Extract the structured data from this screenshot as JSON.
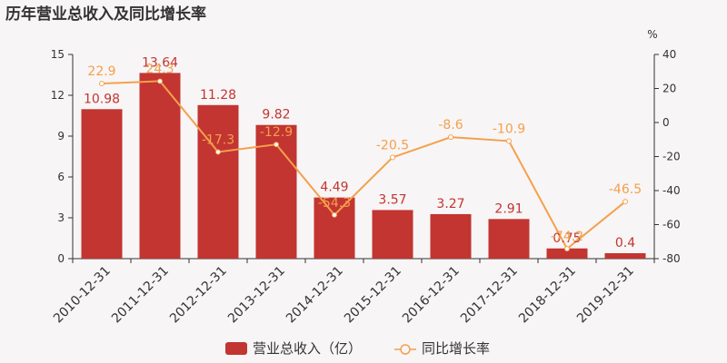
{
  "chart_data": {
    "type": "bar+line",
    "title": "历年营业总收入及同比增长率",
    "categories": [
      "2010-12-31",
      "2011-12-31",
      "2012-12-31",
      "2013-12-31",
      "2014-12-31",
      "2015-12-31",
      "2016-12-31",
      "2017-12-31",
      "2018-12-31",
      "2019-12-31"
    ],
    "series": [
      {
        "name": "营业总收入（亿）",
        "type": "bar",
        "color": "#c23531",
        "values": [
          10.98,
          13.64,
          11.28,
          9.82,
          4.49,
          3.57,
          3.27,
          2.91,
          0.75,
          0.4
        ],
        "labels": [
          "10.98",
          "13.64",
          "11.28",
          "9.82",
          "4.49",
          "3.57",
          "3.27",
          "2.91",
          "0.75",
          "0.4"
        ]
      },
      {
        "name": "同比增长率",
        "type": "line",
        "color": "#f4a04d",
        "values": [
          22.9,
          24.3,
          -17.3,
          -12.9,
          -54.3,
          -20.5,
          -8.6,
          -10.9,
          -74.2,
          -46.5
        ],
        "labels": [
          "22.9",
          "24.3",
          "-17.3",
          "-12.9",
          "-54.3",
          "-20.5",
          "-8.6",
          "-10.9",
          "-74.2",
          "-46.5"
        ]
      }
    ],
    "y_left": {
      "range": [
        0,
        15
      ],
      "ticks": [
        "0",
        "3",
        "6",
        "9",
        "12",
        "15"
      ]
    },
    "y_right": {
      "range": [
        -80,
        40
      ],
      "ticks": [
        "-80",
        "-60",
        "-40",
        "-20",
        "0",
        "20",
        "40"
      ],
      "unit": "%"
    },
    "legend_position": "bottom-center",
    "grid": false
  }
}
